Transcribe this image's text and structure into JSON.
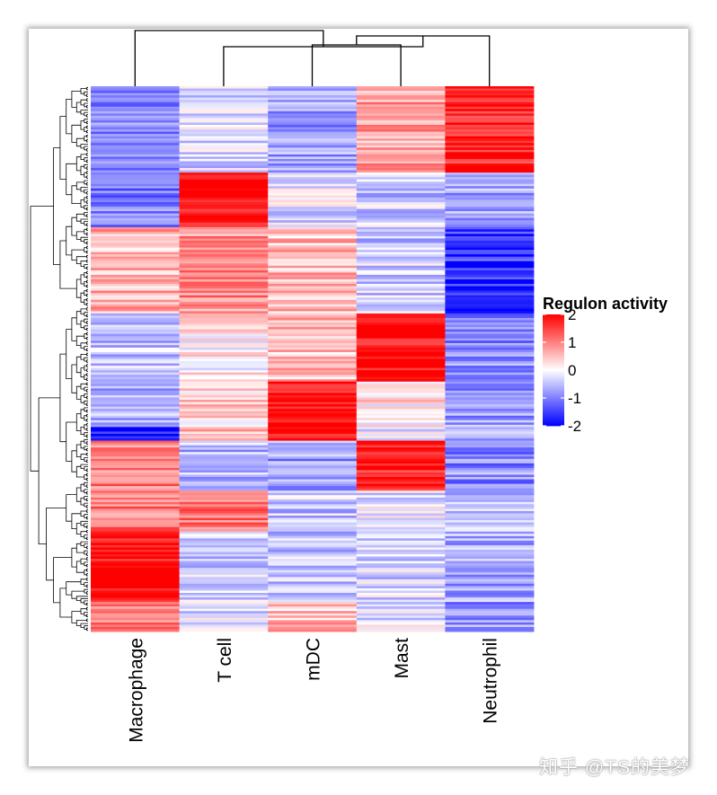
{
  "chart_data": {
    "type": "heatmap",
    "title": "",
    "columns": [
      "Macrophage",
      "T cell",
      "mDC",
      "Mast",
      "Neutrophil"
    ],
    "row_count": 240,
    "value_range": [
      -2,
      2
    ],
    "legend": {
      "title": "Regulon activity",
      "ticks": [
        "2",
        "1",
        "0",
        "-1",
        "-2"
      ],
      "tick_values": [
        2,
        1,
        0,
        -1,
        -2
      ],
      "position": "right",
      "colors": {
        "low": "#0000ff",
        "mid": "#ffffff",
        "high": "#ff0000"
      }
    },
    "column_dendrogram": "mDC and Mast merge first, then Neutrophil, then T cell, then Macrophage",
    "row_dendrogram": true,
    "cluster_blocks": [
      {
        "rows": "1-38",
        "values": [
          -0.9,
          -0.3,
          -0.8,
          0.7,
          1.8
        ]
      },
      {
        "rows": "39-62",
        "values": [
          -1.0,
          2.0,
          -0.2,
          -0.4,
          -0.7
        ]
      },
      {
        "rows": "63-100",
        "values": [
          0.6,
          0.9,
          0.5,
          -0.4,
          -1.6
        ]
      },
      {
        "rows": "101-130",
        "values": [
          -0.4,
          0.1,
          0.5,
          1.9,
          -0.9
        ]
      },
      {
        "rows": "131-150",
        "values": [
          -0.6,
          0.3,
          2.0,
          0.2,
          -0.8
        ]
      },
      {
        "rows": "151-156",
        "values": [
          -1.8,
          0.4,
          1.8,
          -0.2,
          -0.7
        ]
      },
      {
        "rows": "157-178",
        "values": [
          1.0,
          -0.6,
          -0.8,
          1.8,
          -0.9
        ]
      },
      {
        "rows": "179-196",
        "values": [
          1.0,
          1.0,
          -0.4,
          -0.2,
          -0.6
        ]
      },
      {
        "rows": "197-227",
        "values": [
          2.0,
          -0.4,
          -0.4,
          -0.3,
          -0.7
        ]
      },
      {
        "rows": "228-240",
        "values": [
          1.0,
          -0.2,
          0.5,
          -0.2,
          -0.9
        ]
      }
    ]
  },
  "watermark": "知乎 @TS的美梦"
}
